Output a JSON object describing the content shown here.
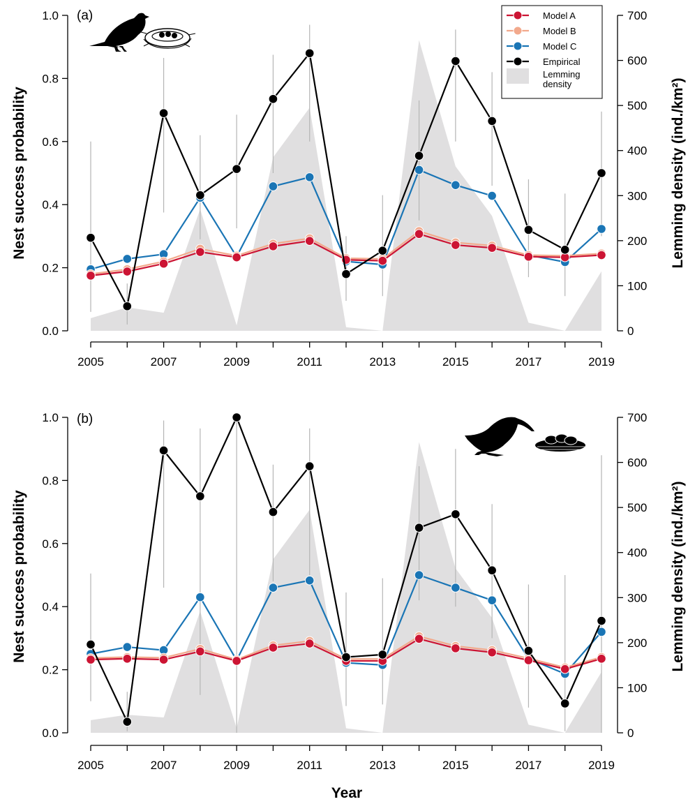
{
  "colors": {
    "model_a": "#cc1433",
    "model_b": "#f2a98c",
    "model_c": "#1a75b5",
    "empirical": "#000000",
    "lemming": "#e0dfe0",
    "errbar": "#b5b5b5"
  },
  "legend": {
    "items": [
      {
        "key": "model_a",
        "label": "Model A",
        "kind": "line"
      },
      {
        "key": "model_b",
        "label": "Model B",
        "kind": "line"
      },
      {
        "key": "model_c",
        "label": "Model C",
        "kind": "line"
      },
      {
        "key": "empirical",
        "label": "Empirical",
        "kind": "line"
      },
      {
        "key": "lemming",
        "label": "Lemming",
        "label2": "density",
        "kind": "box"
      }
    ]
  },
  "x_axis_title": "Year",
  "icons": {
    "panel_a": [
      "songbird-silhouette-icon",
      "cup-nest-icon"
    ],
    "panel_b": [
      "shorebird-silhouette-icon",
      "ground-nest-eggs-icon"
    ]
  },
  "chart_data": [
    {
      "type": "line",
      "panel": "(a)",
      "ylabel": "Nest success probability",
      "y2label": "Lemming density (ind./km²)",
      "xlabel": "",
      "ylim": [
        0,
        1
      ],
      "y2lim": [
        0,
        700
      ],
      "yticks": [
        "0.0",
        "0.2",
        "0.4",
        "0.6",
        "0.8",
        "1.0"
      ],
      "y2ticks": [
        "0",
        "100",
        "200",
        "300",
        "400",
        "500",
        "600",
        "700"
      ],
      "xticks": [
        "2005",
        "2007",
        "2009",
        "2011",
        "2013",
        "2015",
        "2017",
        "2019"
      ],
      "x": [
        2005,
        2006,
        2007,
        2008,
        2009,
        2010,
        2011,
        2012,
        2013,
        2014,
        2015,
        2016,
        2017,
        2018,
        2019
      ],
      "series": [
        {
          "name": "Model A",
          "values": [
            0.175,
            0.188,
            0.213,
            0.25,
            0.233,
            0.268,
            0.285,
            0.225,
            0.222,
            0.307,
            0.272,
            0.263,
            0.235,
            0.233,
            0.24
          ]
        },
        {
          "name": "Model B",
          "values": [
            0.18,
            0.195,
            0.22,
            0.26,
            0.238,
            0.276,
            0.293,
            0.23,
            0.228,
            0.316,
            0.28,
            0.27,
            0.24,
            0.238,
            0.245
          ]
        },
        {
          "name": "Model C",
          "values": [
            0.195,
            0.228,
            0.243,
            0.422,
            0.235,
            0.458,
            0.487,
            0.22,
            0.21,
            0.51,
            0.462,
            0.428,
            0.24,
            0.218,
            0.323
          ]
        },
        {
          "name": "Empirical",
          "values": [
            0.295,
            0.078,
            0.69,
            0.43,
            0.513,
            0.735,
            0.88,
            0.18,
            0.254,
            0.555,
            0.855,
            0.665,
            0.32,
            0.257,
            0.5
          ],
          "ci_low": [
            0.06,
            0.02,
            0.375,
            0.29,
            0.325,
            0.5,
            0.6,
            0.095,
            0.11,
            0.35,
            0.6,
            0.46,
            0.17,
            0.11,
            0.3
          ],
          "ci_high": [
            0.6,
            0.15,
            0.865,
            0.62,
            0.685,
            0.875,
            0.97,
            0.3,
            0.43,
            0.73,
            0.955,
            0.82,
            0.48,
            0.435,
            0.695
          ]
        }
      ],
      "lemming_density": [
        28,
        52,
        40,
        270,
        12,
        385,
        495,
        8,
        0,
        645,
        365,
        255,
        18,
        0,
        132
      ]
    },
    {
      "type": "line",
      "panel": "(b)",
      "ylabel": "Nest success probability",
      "y2label": "Lemming density (ind./km²)",
      "xlabel": "Year",
      "ylim": [
        0,
        1
      ],
      "y2lim": [
        0,
        700
      ],
      "yticks": [
        "0.0",
        "0.2",
        "0.4",
        "0.6",
        "0.8",
        "1.0"
      ],
      "y2ticks": [
        "0",
        "100",
        "200",
        "300",
        "400",
        "500",
        "600",
        "700"
      ],
      "xticks": [
        "2005",
        "2007",
        "2009",
        "2011",
        "2013",
        "2015",
        "2017",
        "2019"
      ],
      "x": [
        2005,
        2006,
        2007,
        2008,
        2009,
        2010,
        2011,
        2012,
        2013,
        2014,
        2015,
        2016,
        2017,
        2018,
        2019
      ],
      "series": [
        {
          "name": "Model A",
          "values": [
            0.232,
            0.235,
            0.232,
            0.258,
            0.228,
            0.27,
            0.283,
            0.228,
            0.228,
            0.298,
            0.268,
            0.255,
            0.23,
            0.202,
            0.235
          ]
        },
        {
          "name": "Model B",
          "values": [
            0.237,
            0.24,
            0.238,
            0.266,
            0.232,
            0.277,
            0.291,
            0.234,
            0.234,
            0.306,
            0.275,
            0.262,
            0.236,
            0.207,
            0.24
          ]
        },
        {
          "name": "Model C",
          "values": [
            0.25,
            0.272,
            0.262,
            0.43,
            0.23,
            0.46,
            0.483,
            0.222,
            0.215,
            0.5,
            0.46,
            0.42,
            0.235,
            0.187,
            0.32
          ]
        },
        {
          "name": "Empirical",
          "values": [
            0.28,
            0.035,
            0.895,
            0.75,
            1.0,
            0.7,
            0.845,
            0.24,
            0.248,
            0.65,
            0.693,
            0.515,
            0.26,
            0.093,
            0.355
          ],
          "ci_low": [
            0.1,
            0.005,
            0.46,
            0.12,
            0.0,
            0.48,
            0.5,
            0.085,
            0.09,
            0.42,
            0.4,
            0.3,
            0.08,
            0.005,
            0.0
          ],
          "ci_high": [
            0.505,
            0.13,
            0.99,
            0.965,
            1.0,
            0.85,
            0.965,
            0.445,
            0.49,
            0.845,
            0.9,
            0.725,
            0.47,
            0.5,
            0.88
          ]
        }
      ],
      "lemming_density": [
        28,
        40,
        34,
        270,
        10,
        385,
        495,
        10,
        0,
        645,
        365,
        255,
        18,
        0,
        135
      ]
    }
  ]
}
